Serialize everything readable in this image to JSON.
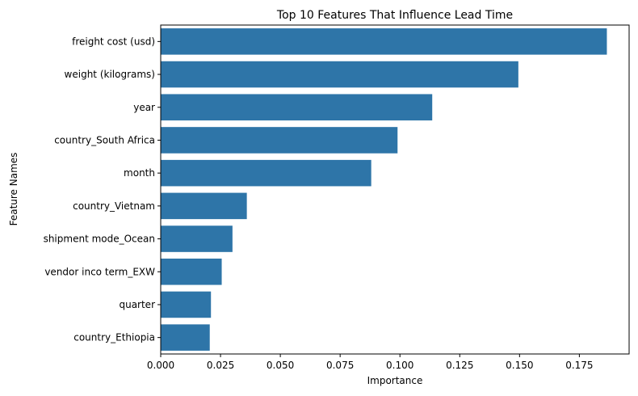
{
  "chart_data": {
    "type": "bar",
    "orientation": "horizontal",
    "title": "Top 10 Features That Influence Lead Time",
    "xlabel": "Importance",
    "ylabel": "Feature Names",
    "categories": [
      "freight cost (usd)",
      "weight (kilograms)",
      "year",
      "country_South Africa",
      "month",
      "country_Vietnam",
      "shipment mode_Ocean",
      "vendor inco term_EXW",
      "quarter",
      "country_Ethiopia"
    ],
    "values": [
      0.1865,
      0.1495,
      0.1135,
      0.099,
      0.088,
      0.036,
      0.03,
      0.0255,
      0.021,
      0.0205
    ],
    "xlim": [
      0,
      0.1958
    ],
    "xticks": [
      0.0,
      0.025,
      0.05,
      0.075,
      0.1,
      0.125,
      0.15,
      0.175
    ],
    "xtick_labels": [
      "0.000",
      "0.025",
      "0.050",
      "0.075",
      "0.100",
      "0.125",
      "0.150",
      "0.175"
    ],
    "bar_color": "#2e75a8",
    "grid": false
  }
}
